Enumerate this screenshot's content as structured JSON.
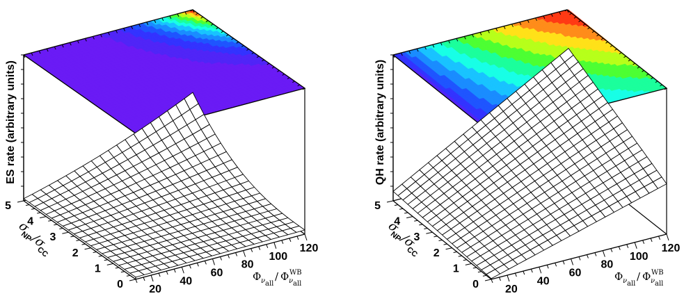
{
  "chart_data": [
    {
      "type": "surface",
      "zlabel": "ES rate (arbitrary units)",
      "x_ticks": [
        "20",
        "40",
        "60",
        "80",
        "100",
        "120"
      ],
      "y_ticks": [
        "0",
        "1",
        "2",
        "3",
        "4",
        "5"
      ],
      "xlim": [
        10,
        120
      ],
      "ylim": [
        0,
        5
      ],
      "xlabel": {
        "phi": "Φ",
        "nu": "ν",
        "sub_all": "all",
        "slash": "/",
        "sup": "WB"
      },
      "ylabel": {
        "sigma": "σ",
        "num": "NP",
        "den": "CC",
        "slash": "/"
      },
      "grid": [
        20,
        20
      ],
      "palette": [
        "#6a1bf5",
        "#5025f7",
        "#3333ff",
        "#1f55ff",
        "#1a8cff",
        "#19c3ff",
        "#18ffe6",
        "#1bff9c",
        "#4dff33",
        "#b7ff1a",
        "#ffe119",
        "#ff8c1a",
        "#ff3a14"
      ]
    },
    {
      "type": "surface",
      "zlabel": "QH rate (arbitrary units)",
      "x_ticks": [
        "20",
        "40",
        "60",
        "80",
        "100",
        "120"
      ],
      "y_ticks": [
        "0",
        "1",
        "2",
        "3",
        "4",
        "5"
      ],
      "xlim": [
        10,
        120
      ],
      "ylim": [
        0,
        5
      ],
      "xlabel": {
        "phi": "Φ",
        "nu": "ν",
        "sub_all": "all",
        "slash": "/",
        "sup": "WB"
      },
      "ylabel": {
        "sigma": "σ",
        "num": "NP",
        "den": "CC",
        "slash": "/"
      },
      "grid": [
        20,
        20
      ],
      "palette": [
        "#6a1bf5",
        "#5025f7",
        "#3333ff",
        "#1f55ff",
        "#1a8cff",
        "#19c3ff",
        "#18ffe6",
        "#1bff9c",
        "#4dff33",
        "#b7ff1a",
        "#ffe119",
        "#ff8c1a",
        "#ff3a14"
      ]
    }
  ]
}
